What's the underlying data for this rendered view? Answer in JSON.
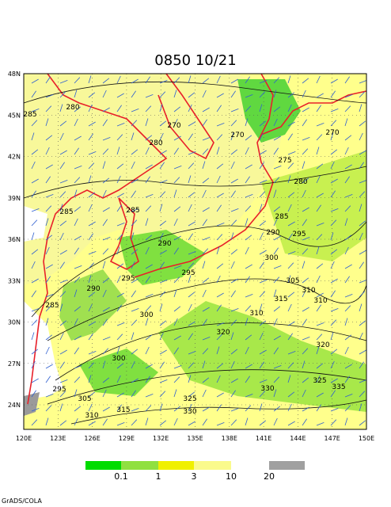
{
  "title": "0850 10/21",
  "lon_ticks": [
    "120E",
    "123E",
    "126E",
    "129E",
    "132E",
    "135E",
    "138E",
    "141E",
    "144E",
    "147E",
    "150E"
  ],
  "lat_ticks": [
    "24N",
    "27N",
    "30N",
    "33N",
    "36N",
    "39N",
    "42N",
    "45N",
    "48N"
  ],
  "contour_labels": [
    "280",
    "285",
    "270",
    "280",
    "270",
    "270",
    "275",
    "280",
    "285",
    "285",
    "285",
    "290",
    "295",
    "290",
    "300",
    "295",
    "295",
    "290",
    "305",
    "310",
    "310",
    "315",
    "285",
    "300",
    "320",
    "310",
    "320",
    "300",
    "325",
    "330",
    "335",
    "295",
    "305",
    "325",
    "315",
    "330",
    "310"
  ],
  "legend": {
    "labels": [
      "0.1",
      "1",
      "3",
      "10",
      "20"
    ]
  },
  "footer": "GrADS/COLA"
}
